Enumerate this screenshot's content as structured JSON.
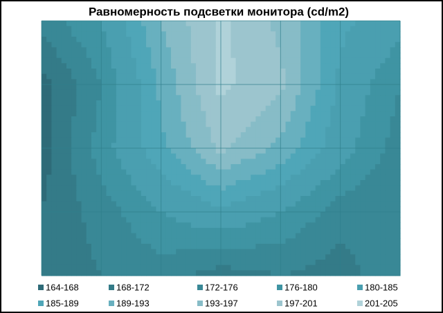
{
  "chart_data": {
    "type": "surface-contour",
    "title": "Равномерность  подсветки монитора (cd/m2)",
    "values": [
      [
        174,
        180,
        193,
        202,
        196,
        186,
        182
      ],
      [
        166,
        176,
        190,
        202,
        198,
        184,
        176
      ],
      [
        166,
        178,
        188,
        198,
        192,
        182,
        174
      ],
      [
        168,
        174,
        180,
        184,
        180,
        174,
        172
      ],
      [
        168,
        172,
        174,
        170,
        172,
        170,
        176
      ]
    ],
    "levels": [
      164,
      168,
      172,
      176,
      180,
      185,
      189,
      193,
      197,
      201,
      205
    ],
    "legend": [
      {
        "name": "164-168",
        "color": "#2e6b78"
      },
      {
        "name": "168-172",
        "color": "#347b88"
      },
      {
        "name": "172-176",
        "color": "#398896"
      },
      {
        "name": "176-180",
        "color": "#3f94a3"
      },
      {
        "name": "180-185",
        "color": "#4a9fb0"
      },
      {
        "name": "185-189",
        "color": "#4fa6b8"
      },
      {
        "name": "189-193",
        "color": "#68b0bf"
      },
      {
        "name": "193-197",
        "color": "#87bcc7"
      },
      {
        "name": "197-201",
        "color": "#9cc5ce"
      },
      {
        "name": "201-205",
        "color": "#b0d2d9"
      }
    ],
    "grid": true
  }
}
